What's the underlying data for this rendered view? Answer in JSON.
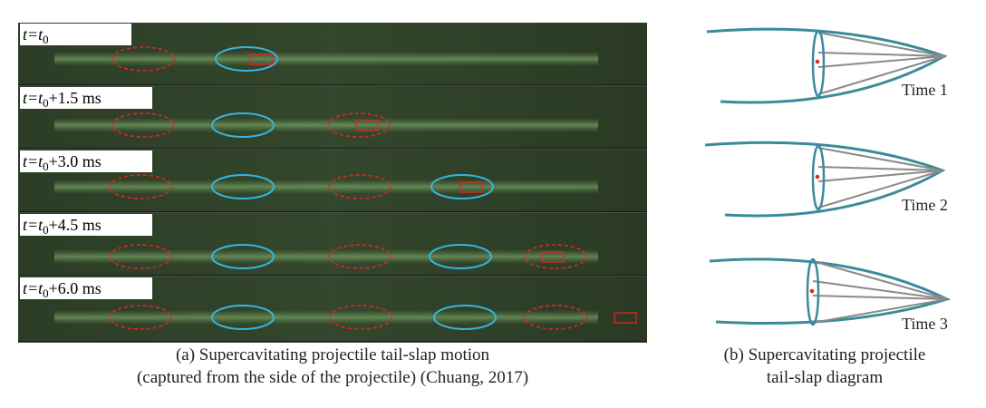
{
  "panel_a": {
    "frames": [
      {
        "main": "t=t",
        "sub": "0",
        "offset": ""
      },
      {
        "main": "t=t",
        "sub": "0",
        "offset": "+1.5 ms"
      },
      {
        "main": "t=t",
        "sub": "0",
        "offset": "+3.0 ms"
      },
      {
        "main": "t=t",
        "sub": "0",
        "offset": "+4.5 ms"
      },
      {
        "main": "t=t",
        "sub": "0",
        "offset": "+6.0 ms"
      }
    ],
    "caption": [
      "(a) Supercavitating projectile tail-slap motion",
      "(captured from the side of the projectile) (Chuang, 2017)"
    ]
  },
  "panel_b": {
    "times": [
      "Time 1",
      "Time 2",
      "Time 3"
    ],
    "caption": [
      "(b) Supercavitating projectile",
      "tail-slap diagram"
    ]
  }
}
